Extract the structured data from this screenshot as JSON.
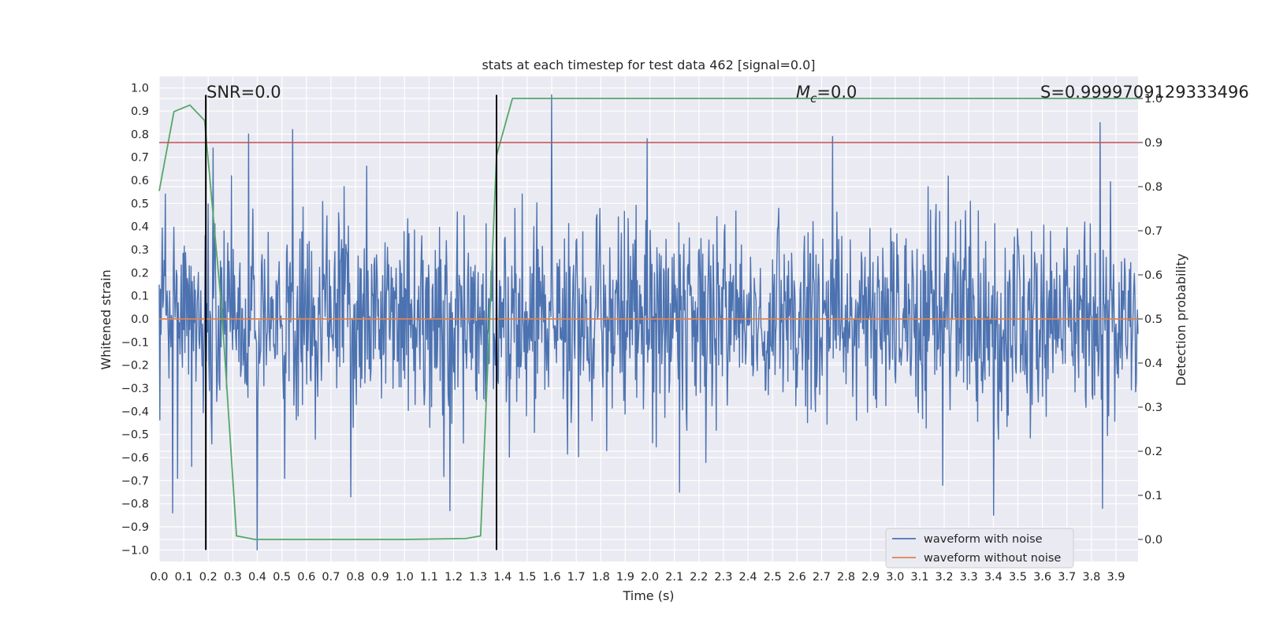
{
  "chart_data": {
    "type": "line",
    "title": "stats at each timestep for test data 462 [signal=0.0]",
    "xlabel": "Time (s)",
    "ylabel_left": "Whitened strain",
    "ylabel_right": "Detection probability",
    "xlim": [
      0.0,
      3.99
    ],
    "ylim_left": [
      -1.05,
      1.05
    ],
    "ylim_right": [
      -0.05,
      1.05
    ],
    "grid": true,
    "background": "#eaeaf2",
    "x_ticks": [
      "0.0",
      "0.1",
      "0.2",
      "0.3",
      "0.4",
      "0.5",
      "0.6",
      "0.7",
      "0.8",
      "0.9",
      "1.0",
      "1.1",
      "1.2",
      "1.3",
      "1.4",
      "1.5",
      "1.6",
      "1.7",
      "1.8",
      "1.9",
      "2.0",
      "2.1",
      "2.2",
      "2.3",
      "2.4",
      "2.5",
      "2.6",
      "2.7",
      "2.8",
      "2.9",
      "3.0",
      "3.1",
      "3.2",
      "3.3",
      "3.4",
      "3.5",
      "3.6",
      "3.7",
      "3.8",
      "3.9"
    ],
    "y_ticks_left": [
      "1.0",
      "0.9",
      "0.8",
      "0.7",
      "0.6",
      "0.5",
      "0.4",
      "0.3",
      "0.2",
      "0.1",
      "0.0",
      "−0.1",
      "−0.2",
      "−0.3",
      "−0.4",
      "−0.5",
      "−0.6",
      "−0.7",
      "−0.8",
      "−0.9",
      "−1.0"
    ],
    "y_ticks_right": [
      "1.0",
      "0.9",
      "0.8",
      "0.7",
      "0.6",
      "0.5",
      "0.4",
      "0.3",
      "0.2",
      "0.1",
      "0.0"
    ],
    "annotations": {
      "snr": "SNR=0.0",
      "mc_symbol": "M",
      "mc_sub": "c",
      "mc_value": "=0.0",
      "s": "S=0.9999709129333496"
    },
    "vertical_lines_x": [
      0.19,
      1.375
    ],
    "threshold_right": 0.9,
    "series": [
      {
        "name": "waveform with noise",
        "color": "#4c72b0",
        "axis": "left",
        "kind": "noise",
        "samples": 1600,
        "sigma": 0.22,
        "spikes": [
          {
            "x": 0.055,
            "y": -0.84
          },
          {
            "x": 0.075,
            "y": -0.69
          },
          {
            "x": 0.22,
            "y": 0.74
          },
          {
            "x": 0.365,
            "y": 0.8
          },
          {
            "x": 0.4,
            "y": -1.0
          },
          {
            "x": 0.545,
            "y": 0.82
          },
          {
            "x": 0.78,
            "y": -0.77
          },
          {
            "x": 1.185,
            "y": -0.83
          },
          {
            "x": 1.6,
            "y": 0.97
          },
          {
            "x": 1.99,
            "y": 0.78
          },
          {
            "x": 2.12,
            "y": -0.75
          },
          {
            "x": 2.745,
            "y": 0.79
          },
          {
            "x": 3.195,
            "y": -0.72
          },
          {
            "x": 3.4,
            "y": -0.85
          },
          {
            "x": 3.835,
            "y": 0.85
          },
          {
            "x": 3.845,
            "y": -0.82
          }
        ]
      },
      {
        "name": "waveform without noise",
        "color": "#dd8452",
        "axis": "left",
        "kind": "constant",
        "value": 0.0
      },
      {
        "name": "",
        "color": "#55a868",
        "axis": "right",
        "kind": "line",
        "x": [
          0.0,
          0.06,
          0.125,
          0.185,
          0.255,
          0.315,
          0.39,
          0.6,
          1.0,
          1.25,
          1.31,
          1.375,
          1.44,
          3.99
        ],
        "y": [
          0.79,
          0.97,
          0.985,
          0.95,
          0.52,
          0.008,
          0.0,
          0.0,
          0.0,
          0.002,
          0.008,
          0.87,
          1.0,
          1.0
        ]
      },
      {
        "name": "",
        "color": "#c44e52",
        "axis": "right",
        "kind": "hline",
        "value": 0.9
      }
    ],
    "legend": {
      "placement": "lower-right",
      "entries": [
        "waveform with noise",
        "waveform without noise"
      ]
    }
  }
}
